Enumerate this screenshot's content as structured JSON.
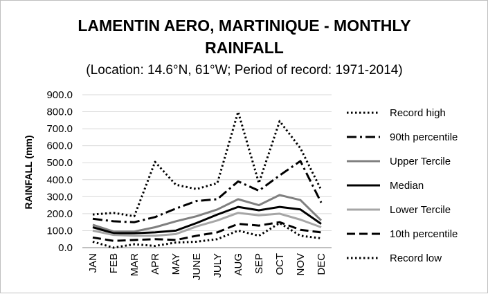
{
  "chart_data": {
    "type": "line",
    "title_line1": "LAMENTIN AERO, MARTINIQUE - MONTHLY",
    "title_line2": "RAINFALL",
    "subtitle": "(Location: 14.6°N, 61°W; Period of record: 1971-2014)",
    "xlabel": "",
    "ylabel": "RAINFALL (mm)",
    "categories": [
      "JAN",
      "FEB",
      "MAR",
      "APR",
      "MAY",
      "JUNE",
      "JULY",
      "AUG",
      "SEP",
      "OCT",
      "NOV",
      "DEC"
    ],
    "ylim": [
      0,
      900
    ],
    "yticks": [
      "0.0",
      "100.0",
      "200.0",
      "300.0",
      "400.0",
      "500.0",
      "600.0",
      "700.0",
      "800.0",
      "900.0"
    ],
    "grid": "horizontal",
    "legend_position": "right",
    "series": [
      {
        "name": "Record high",
        "style": "dotted",
        "color": "#000000",
        "values": [
          195,
          205,
          185,
          505,
          370,
          345,
          380,
          800,
          380,
          745,
          585,
          340
        ]
      },
      {
        "name": "90th percentile",
        "style": "dashdot",
        "color": "#000000",
        "values": [
          170,
          155,
          150,
          180,
          230,
          275,
          285,
          390,
          335,
          425,
          510,
          265
        ]
      },
      {
        "name": "Upper Tercile",
        "style": "solid-thick",
        "color": "#808080",
        "values": [
          135,
          95,
          95,
          120,
          155,
          185,
          225,
          285,
          250,
          310,
          280,
          160
        ]
      },
      {
        "name": "Median",
        "style": "solid-thick",
        "color": "#000000",
        "values": [
          120,
          85,
          85,
          90,
          100,
          145,
          195,
          240,
          220,
          240,
          225,
          140
        ]
      },
      {
        "name": "Lower Tercile",
        "style": "solid-thick",
        "color": "#a6a6a6",
        "values": [
          100,
          75,
          70,
          70,
          80,
          125,
          160,
          205,
          190,
          200,
          165,
          120
        ]
      },
      {
        "name": "10th percentile",
        "style": "dashed",
        "color": "#000000",
        "values": [
          60,
          40,
          45,
          50,
          45,
          70,
          90,
          140,
          130,
          150,
          105,
          90
        ]
      },
      {
        "name": "Record low",
        "style": "dotted",
        "color": "#000000",
        "values": [
          35,
          0,
          20,
          10,
          30,
          35,
          50,
          100,
          70,
          145,
          70,
          55
        ]
      }
    ]
  }
}
